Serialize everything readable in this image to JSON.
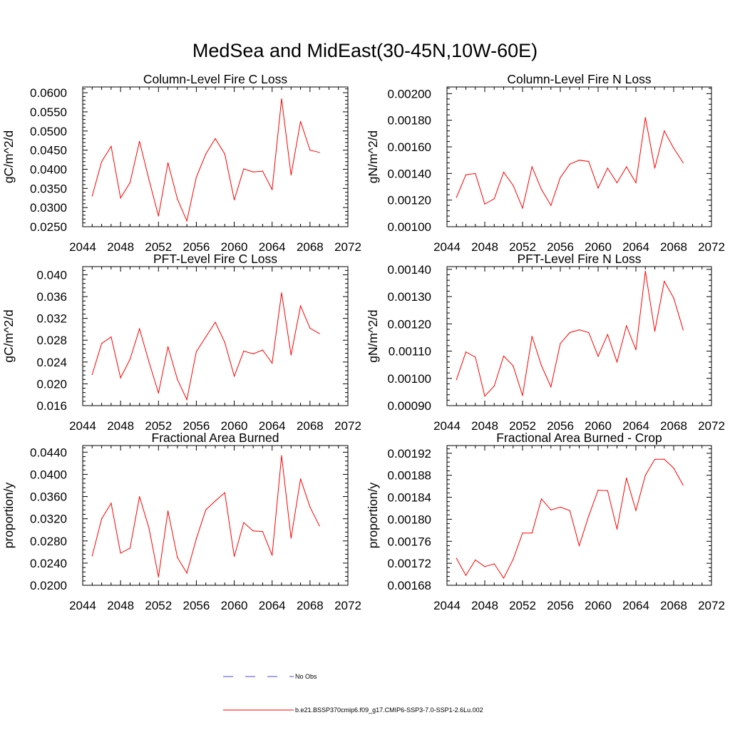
{
  "title": "MedSea and MidEast(30-45N,10W-60E)",
  "legend": [
    {
      "label": "No Obs",
      "color": "#4a4ad8",
      "dash": true
    },
    {
      "label": "b.e21.BSSP370cmip6.f09_g17.CMIP6-SSP3-7.0-SSP1-2.6Lu.002",
      "color": "#ff0000",
      "dash": false
    }
  ],
  "chart_data": [
    {
      "type": "line",
      "title": "Column-Level Fire C Loss",
      "ylabel": "gC/m^2/d",
      "xlim": [
        2044,
        2072
      ],
      "ylim": [
        0.025,
        0.0615
      ],
      "xticks": [
        "2044",
        "2048",
        "2052",
        "2056",
        "2060",
        "2064",
        "2068",
        "2072"
      ],
      "yticks": [
        "0.0250",
        "0.0300",
        "0.0350",
        "0.0400",
        "0.0450",
        "0.0500",
        "0.0550",
        "0.0600"
      ],
      "series": [
        {
          "color": "#ff0000",
          "x": [
            2045,
            2046,
            2047,
            2048,
            2049,
            2050,
            2051,
            2052,
            2053,
            2054,
            2055,
            2056,
            2057,
            2058,
            2059,
            2060,
            2061,
            2062,
            2063,
            2064,
            2065,
            2066,
            2067,
            2068,
            2069
          ],
          "y": [
            0.033,
            0.042,
            0.046,
            0.0325,
            0.0365,
            0.0473,
            0.0373,
            0.0278,
            0.0417,
            0.0322,
            0.0265,
            0.0379,
            0.044,
            0.048,
            0.044,
            0.032,
            0.0401,
            0.0393,
            0.0395,
            0.0347,
            0.0584,
            0.0385,
            0.0525,
            0.045,
            0.0444
          ]
        }
      ]
    },
    {
      "type": "line",
      "title": "Column-Level Fire N Loss",
      "ylabel": "gN/m^2/d",
      "xlim": [
        2044,
        2072
      ],
      "ylim": [
        0.001,
        0.00205
      ],
      "xticks": [
        "2044",
        "2048",
        "2052",
        "2056",
        "2060",
        "2064",
        "2068",
        "2072"
      ],
      "yticks": [
        "0.00100",
        "0.00120",
        "0.00140",
        "0.00160",
        "0.00180",
        "0.00200"
      ],
      "series": [
        {
          "color": "#ff0000",
          "x": [
            2045,
            2046,
            2047,
            2048,
            2049,
            2050,
            2051,
            2052,
            2053,
            2054,
            2055,
            2056,
            2057,
            2058,
            2059,
            2060,
            2061,
            2062,
            2063,
            2064,
            2065,
            2066,
            2067,
            2068,
            2069
          ],
          "y": [
            0.00122,
            0.00139,
            0.0014,
            0.00117,
            0.00121,
            0.00141,
            0.00131,
            0.00114,
            0.00145,
            0.00128,
            0.00116,
            0.00137,
            0.00147,
            0.0015,
            0.00149,
            0.00129,
            0.00144,
            0.00133,
            0.00145,
            0.00133,
            0.00182,
            0.00144,
            0.00172,
            0.00159,
            0.00148
          ]
        }
      ]
    },
    {
      "type": "line",
      "title": "PFT-Level Fire C Loss",
      "ylabel": "gC/m^2/d",
      "xlim": [
        2044,
        2072
      ],
      "ylim": [
        0.016,
        0.0415
      ],
      "xticks": [
        "2044",
        "2048",
        "2052",
        "2056",
        "2060",
        "2064",
        "2068",
        "2072"
      ],
      "yticks": [
        "0.016",
        "0.020",
        "0.024",
        "0.028",
        "0.032",
        "0.036",
        "0.040"
      ],
      "series": [
        {
          "color": "#ff0000",
          "x": [
            2045,
            2046,
            2047,
            2048,
            2049,
            2050,
            2051,
            2052,
            2053,
            2054,
            2055,
            2056,
            2057,
            2058,
            2059,
            2060,
            2061,
            2062,
            2063,
            2064,
            2065,
            2066,
            2067,
            2068,
            2069
          ],
          "y": [
            0.0217,
            0.0274,
            0.0286,
            0.0211,
            0.0245,
            0.0301,
            0.024,
            0.0183,
            0.0268,
            0.0208,
            0.0171,
            0.0259,
            0.0286,
            0.0313,
            0.0276,
            0.0214,
            0.026,
            0.0255,
            0.0262,
            0.0238,
            0.0367,
            0.0253,
            0.0343,
            0.0302,
            0.0292
          ]
        }
      ]
    },
    {
      "type": "line",
      "title": "PFT-Level Fire N Loss",
      "ylabel": "gN/m^2/d",
      "xlim": [
        2044,
        2072
      ],
      "ylim": [
        0.0009,
        0.00141
      ],
      "xticks": [
        "2044",
        "2048",
        "2052",
        "2056",
        "2060",
        "2064",
        "2068",
        "2072"
      ],
      "yticks": [
        "0.00090",
        "0.00100",
        "0.00110",
        "0.00120",
        "0.00130",
        "0.00140"
      ],
      "series": [
        {
          "color": "#ff0000",
          "x": [
            2045,
            2046,
            2047,
            2048,
            2049,
            2050,
            2051,
            2052,
            2053,
            2054,
            2055,
            2056,
            2057,
            2058,
            2059,
            2060,
            2061,
            2062,
            2063,
            2064,
            2065,
            2066,
            2067,
            2068,
            2069
          ],
          "y": [
            0.000995,
            0.001097,
            0.001078,
            0.000935,
            0.000972,
            0.001082,
            0.001046,
            0.000937,
            0.001154,
            0.001047,
            0.000969,
            0.001128,
            0.001168,
            0.001178,
            0.001168,
            0.001081,
            0.001161,
            0.00106,
            0.001193,
            0.001105,
            0.001393,
            0.001173,
            0.001356,
            0.001295,
            0.001178
          ]
        }
      ]
    },
    {
      "type": "line",
      "title": "Fractional Area Burned",
      "ylabel": "proportion/y",
      "xlim": [
        2044,
        2072
      ],
      "ylim": [
        0.02,
        0.0452
      ],
      "xticks": [
        "2044",
        "2048",
        "2052",
        "2056",
        "2060",
        "2064",
        "2068",
        "2072"
      ],
      "yticks": [
        "0.0200",
        "0.0240",
        "0.0280",
        "0.0320",
        "0.0360",
        "0.0400",
        "0.0440"
      ],
      "series": [
        {
          "color": "#ff0000",
          "x": [
            2045,
            2046,
            2047,
            2048,
            2049,
            2050,
            2051,
            2052,
            2053,
            2054,
            2055,
            2056,
            2057,
            2058,
            2059,
            2060,
            2061,
            2062,
            2063,
            2064,
            2065,
            2066,
            2067,
            2068,
            2069
          ],
          "y": [
            0.0253,
            0.032,
            0.0348,
            0.0258,
            0.0267,
            0.036,
            0.0303,
            0.0215,
            0.0334,
            0.025,
            0.0222,
            0.0284,
            0.0336,
            0.0352,
            0.0367,
            0.0252,
            0.0313,
            0.0298,
            0.0297,
            0.0254,
            0.0434,
            0.0285,
            0.0392,
            0.0341,
            0.0307
          ]
        }
      ]
    },
    {
      "type": "line",
      "title": "Fractional Area Burned - Crop",
      "ylabel": "proportion/y",
      "xlim": [
        2044,
        2072
      ],
      "ylim": [
        0.00168,
        0.001934
      ],
      "xticks": [
        "2044",
        "2048",
        "2052",
        "2056",
        "2060",
        "2064",
        "2068",
        "2072"
      ],
      "yticks": [
        "0.00168",
        "0.00172",
        "0.00176",
        "0.00180",
        "0.00184",
        "0.00188",
        "0.00192"
      ],
      "series": [
        {
          "color": "#ff0000",
          "x": [
            2045,
            2046,
            2047,
            2048,
            2049,
            2050,
            2051,
            2052,
            2053,
            2054,
            2055,
            2056,
            2057,
            2058,
            2059,
            2060,
            2061,
            2062,
            2063,
            2064,
            2065,
            2066,
            2067,
            2068,
            2069
          ],
          "y": [
            0.001729,
            0.001698,
            0.001726,
            0.001714,
            0.001719,
            0.001693,
            0.001727,
            0.001775,
            0.001775,
            0.001837,
            0.001817,
            0.001822,
            0.001816,
            0.001752,
            0.001806,
            0.001853,
            0.001852,
            0.001782,
            0.001875,
            0.001816,
            0.00188,
            0.001909,
            0.001909,
            0.001893,
            0.001862
          ]
        }
      ]
    }
  ]
}
